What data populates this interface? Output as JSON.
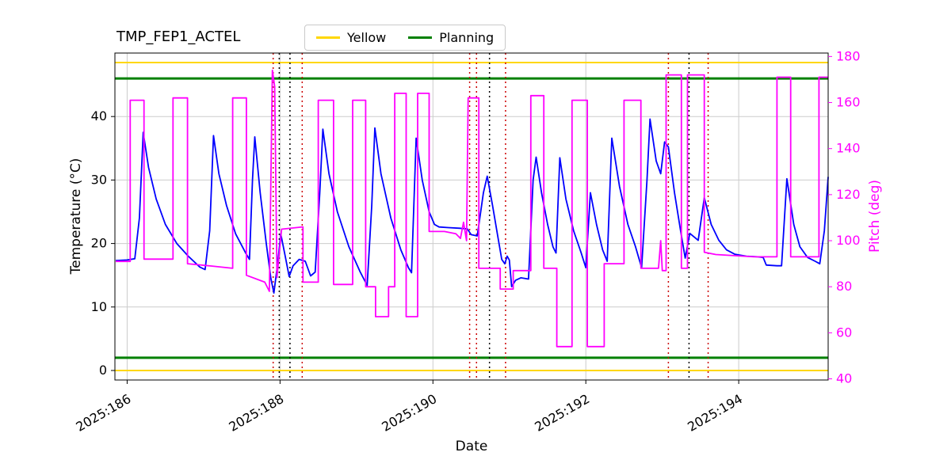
{
  "chart_data": {
    "type": "line",
    "title": "TMP_FEP1_ACTEL",
    "xlabel": "Date",
    "grid": true,
    "legend_position": "top-center",
    "legend": [
      {
        "label": "Yellow",
        "color": "#ffd700"
      },
      {
        "label": "Planning",
        "color": "#008000"
      }
    ],
    "x_axis": {
      "label": "Date",
      "lim": [
        185.84,
        195.17
      ],
      "ticks": [
        {
          "v": 186,
          "label": "2025:186"
        },
        {
          "v": 188,
          "label": "2025:188"
        },
        {
          "v": 190,
          "label": "2025:190"
        },
        {
          "v": 192,
          "label": "2025:192"
        },
        {
          "v": 194,
          "label": "2025:194"
        }
      ]
    },
    "y_left_axis": {
      "label": "Temperature (°C)",
      "color": "#000000",
      "lim": [
        -1.5,
        50
      ],
      "ticks": [
        0,
        10,
        20,
        30,
        40
      ]
    },
    "y_right_axis": {
      "label": "Pitch (deg)",
      "color": "#ff00ff",
      "lim": [
        39.5,
        181.5
      ],
      "ticks": [
        40,
        60,
        80,
        100,
        120,
        140,
        160,
        180
      ]
    },
    "hlines": [
      {
        "name": "yellow-high",
        "value": 48.5,
        "color": "#ffd700",
        "width": 2
      },
      {
        "name": "planning-high",
        "value": 46.0,
        "color": "#008000",
        "width": 3
      },
      {
        "name": "planning-low",
        "value": 2.0,
        "color": "#008000",
        "width": 3
      },
      {
        "name": "yellow-low",
        "value": 0.0,
        "color": "#ffd700",
        "width": 2
      }
    ],
    "vlines": [
      {
        "x": 187.91,
        "color": "#cc0000"
      },
      {
        "x": 187.99,
        "color": "#000000"
      },
      {
        "x": 188.13,
        "color": "#000000"
      },
      {
        "x": 188.29,
        "color": "#cc0000"
      },
      {
        "x": 190.48,
        "color": "#cc0000"
      },
      {
        "x": 190.57,
        "color": "#cc0000"
      },
      {
        "x": 190.74,
        "color": "#000000"
      },
      {
        "x": 190.95,
        "color": "#cc0000"
      },
      {
        "x": 193.08,
        "color": "#cc0000"
      },
      {
        "x": 193.35,
        "color": "#000000"
      },
      {
        "x": 193.6,
        "color": "#cc0000"
      }
    ],
    "series": [
      {
        "name": "temperature",
        "axis": "left",
        "color": "#0000ff",
        "width": 1.8,
        "points": [
          [
            185.85,
            17.3
          ],
          [
            186.0,
            17.4
          ],
          [
            186.1,
            17.6
          ],
          [
            186.16,
            24
          ],
          [
            186.21,
            37.5
          ],
          [
            186.28,
            32
          ],
          [
            186.38,
            27
          ],
          [
            186.5,
            23
          ],
          [
            186.65,
            20
          ],
          [
            186.8,
            18
          ],
          [
            186.95,
            16.3
          ],
          [
            187.02,
            15.9
          ],
          [
            187.08,
            22
          ],
          [
            187.13,
            37
          ],
          [
            187.2,
            31
          ],
          [
            187.3,
            26
          ],
          [
            187.42,
            21.5
          ],
          [
            187.55,
            18.5
          ],
          [
            187.6,
            17.5
          ],
          [
            187.64,
            30
          ],
          [
            187.67,
            36.8
          ],
          [
            187.74,
            28
          ],
          [
            187.82,
            20
          ],
          [
            187.88,
            14.5
          ],
          [
            187.92,
            12.2
          ],
          [
            187.97,
            17
          ],
          [
            188.01,
            21.5
          ],
          [
            188.06,
            18.5
          ],
          [
            188.12,
            14.8
          ],
          [
            188.17,
            16.5
          ],
          [
            188.25,
            17.5
          ],
          [
            188.33,
            17.2
          ],
          [
            188.4,
            14.9
          ],
          [
            188.46,
            15.5
          ],
          [
            188.52,
            28
          ],
          [
            188.56,
            38
          ],
          [
            188.64,
            31
          ],
          [
            188.75,
            25
          ],
          [
            188.9,
            19.5
          ],
          [
            189.05,
            15.5
          ],
          [
            189.14,
            13.4
          ],
          [
            189.2,
            26
          ],
          [
            189.24,
            38.2
          ],
          [
            189.32,
            31
          ],
          [
            189.45,
            24
          ],
          [
            189.58,
            19
          ],
          [
            189.68,
            16.2
          ],
          [
            189.72,
            15.4
          ],
          [
            189.78,
            36.6
          ],
          [
            189.86,
            30
          ],
          [
            189.95,
            25
          ],
          [
            190.02,
            23
          ],
          [
            190.08,
            22.6
          ],
          [
            190.2,
            22.5
          ],
          [
            190.35,
            22.4
          ],
          [
            190.45,
            22.3
          ],
          [
            190.5,
            21.4
          ],
          [
            190.58,
            21.2
          ],
          [
            190.66,
            28
          ],
          [
            190.71,
            30.6
          ],
          [
            190.78,
            26
          ],
          [
            190.85,
            21
          ],
          [
            190.9,
            17.5
          ],
          [
            190.94,
            16.8
          ],
          [
            190.97,
            18
          ],
          [
            191.0,
            17.4
          ],
          [
            191.03,
            13.2
          ],
          [
            191.08,
            14.2
          ],
          [
            191.15,
            14.6
          ],
          [
            191.25,
            14.4
          ],
          [
            191.31,
            30
          ],
          [
            191.35,
            33.6
          ],
          [
            191.42,
            28
          ],
          [
            191.5,
            23
          ],
          [
            191.57,
            19.5
          ],
          [
            191.61,
            18.5
          ],
          [
            191.66,
            33.5
          ],
          [
            191.74,
            27
          ],
          [
            191.84,
            22
          ],
          [
            191.94,
            18.5
          ],
          [
            192.0,
            16.2
          ],
          [
            192.06,
            28
          ],
          [
            192.14,
            23
          ],
          [
            192.22,
            19
          ],
          [
            192.28,
            17.2
          ],
          [
            192.34,
            36.6
          ],
          [
            192.44,
            29
          ],
          [
            192.55,
            23
          ],
          [
            192.65,
            19.5
          ],
          [
            192.73,
            16.2
          ],
          [
            192.8,
            30
          ],
          [
            192.84,
            39.6
          ],
          [
            192.92,
            33
          ],
          [
            192.98,
            31
          ],
          [
            193.03,
            36
          ],
          [
            193.08,
            35.2
          ],
          [
            193.16,
            28
          ],
          [
            193.24,
            22
          ],
          [
            193.3,
            17.7
          ],
          [
            193.36,
            21.6
          ],
          [
            193.42,
            21
          ],
          [
            193.47,
            20.5
          ],
          [
            193.55,
            27.2
          ],
          [
            193.64,
            23
          ],
          [
            193.74,
            20.5
          ],
          [
            193.84,
            19
          ],
          [
            193.95,
            18.3
          ],
          [
            194.1,
            18
          ],
          [
            194.25,
            17.9
          ],
          [
            194.32,
            17.8
          ],
          [
            194.36,
            16.6
          ],
          [
            194.5,
            16.5
          ],
          [
            194.56,
            16.5
          ],
          [
            194.63,
            30.2
          ],
          [
            194.72,
            23
          ],
          [
            194.8,
            19.5
          ],
          [
            194.9,
            17.8
          ],
          [
            195.0,
            17.2
          ],
          [
            195.06,
            16.8
          ],
          [
            195.12,
            22
          ],
          [
            195.17,
            30.5
          ]
        ]
      },
      {
        "name": "pitch",
        "axis": "right",
        "color": "#ff00ff",
        "width": 1.8,
        "points": [
          [
            185.85,
            91
          ],
          [
            186.04,
            91
          ],
          [
            186.04,
            161
          ],
          [
            186.22,
            161
          ],
          [
            186.22,
            92
          ],
          [
            186.6,
            92
          ],
          [
            186.6,
            162
          ],
          [
            186.79,
            162
          ],
          [
            186.79,
            90
          ],
          [
            187.1,
            89
          ],
          [
            187.38,
            88
          ],
          [
            187.38,
            162
          ],
          [
            187.56,
            162
          ],
          [
            187.56,
            85
          ],
          [
            187.8,
            82
          ],
          [
            187.86,
            78
          ],
          [
            187.9,
            174
          ],
          [
            187.93,
            167
          ],
          [
            187.96,
            84
          ],
          [
            188.02,
            105
          ],
          [
            188.3,
            106
          ],
          [
            188.3,
            82
          ],
          [
            188.5,
            82
          ],
          [
            188.5,
            161
          ],
          [
            188.7,
            161
          ],
          [
            188.7,
            81
          ],
          [
            188.95,
            81
          ],
          [
            188.95,
            161
          ],
          [
            189.12,
            161
          ],
          [
            189.12,
            80
          ],
          [
            189.25,
            80
          ],
          [
            189.25,
            67
          ],
          [
            189.42,
            67
          ],
          [
            189.42,
            80
          ],
          [
            189.5,
            80
          ],
          [
            189.5,
            164
          ],
          [
            189.65,
            164
          ],
          [
            189.65,
            67
          ],
          [
            189.8,
            67
          ],
          [
            189.8,
            164
          ],
          [
            189.95,
            164
          ],
          [
            189.95,
            104
          ],
          [
            190.15,
            104
          ],
          [
            190.3,
            103
          ],
          [
            190.36,
            101
          ],
          [
            190.4,
            108
          ],
          [
            190.44,
            100
          ],
          [
            190.46,
            162
          ],
          [
            190.6,
            162
          ],
          [
            190.6,
            88
          ],
          [
            190.88,
            88
          ],
          [
            190.88,
            79
          ],
          [
            191.05,
            79
          ],
          [
            191.05,
            87
          ],
          [
            191.28,
            87
          ],
          [
            191.28,
            163
          ],
          [
            191.45,
            163
          ],
          [
            191.45,
            88
          ],
          [
            191.62,
            88
          ],
          [
            191.62,
            54
          ],
          [
            191.82,
            54
          ],
          [
            191.82,
            161
          ],
          [
            192.02,
            161
          ],
          [
            192.02,
            54
          ],
          [
            192.24,
            54
          ],
          [
            192.24,
            90
          ],
          [
            192.5,
            90
          ],
          [
            192.5,
            161
          ],
          [
            192.72,
            161
          ],
          [
            192.72,
            88
          ],
          [
            192.95,
            88
          ],
          [
            192.98,
            100
          ],
          [
            193.0,
            87
          ],
          [
            193.05,
            87
          ],
          [
            193.05,
            172
          ],
          [
            193.25,
            172
          ],
          [
            193.25,
            88
          ],
          [
            193.33,
            88
          ],
          [
            193.33,
            172
          ],
          [
            193.55,
            172
          ],
          [
            193.55,
            95
          ],
          [
            193.7,
            94
          ],
          [
            194.2,
            93
          ],
          [
            194.5,
            93
          ],
          [
            194.5,
            171
          ],
          [
            194.68,
            171
          ],
          [
            194.68,
            93
          ],
          [
            195.05,
            93
          ],
          [
            195.05,
            171
          ],
          [
            195.17,
            171
          ]
        ]
      }
    ]
  }
}
